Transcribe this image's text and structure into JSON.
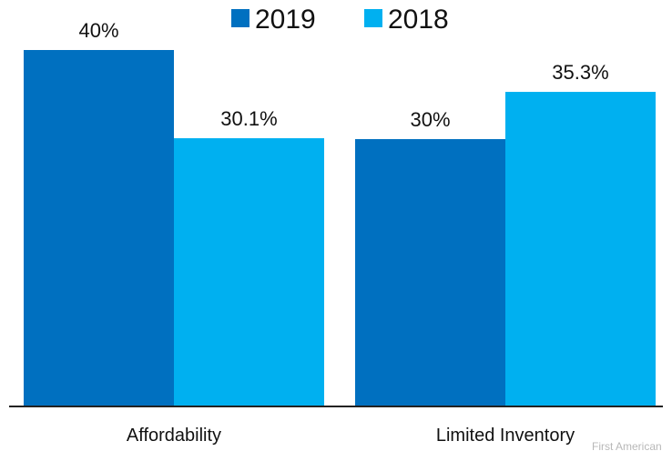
{
  "chart_data": {
    "type": "bar",
    "categories": [
      "Affordability",
      "Limited Inventory"
    ],
    "series": [
      {
        "name": "2019",
        "values": [
          40,
          30
        ],
        "labels": [
          "40%",
          "30%"
        ],
        "color": "#0070c0"
      },
      {
        "name": "2018",
        "values": [
          30.1,
          35.3
        ],
        "labels": [
          "30.1%",
          "35.3%"
        ],
        "color": "#00b0f0"
      }
    ],
    "title": "",
    "xlabel": "",
    "ylabel": "",
    "ylim": [
      0,
      40
    ],
    "grid": false,
    "legend": "top-center"
  },
  "source": "First American"
}
